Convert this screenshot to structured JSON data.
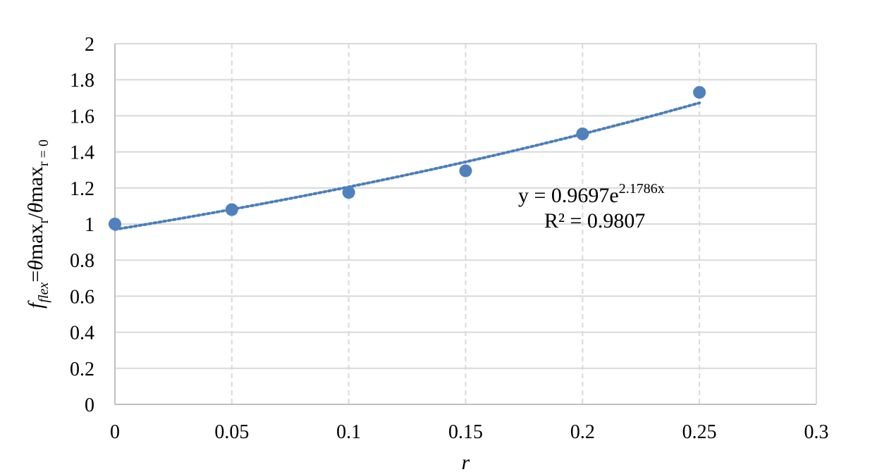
{
  "chart_data": {
    "type": "scatter",
    "title": "",
    "xlabel": "r",
    "ylabel": {
      "parts": [
        {
          "text": "f",
          "style": "italic"
        },
        {
          "text": "flex",
          "style": "italic-sub"
        },
        {
          "text": "=",
          "style": "normal"
        },
        {
          "text": "θ",
          "style": "italic"
        },
        {
          "text": "max",
          "style": "normal"
        },
        {
          "text": "r",
          "style": "sub"
        },
        {
          "text": "/",
          "style": "normal"
        },
        {
          "text": "θ",
          "style": "italic"
        },
        {
          "text": "max",
          "style": "normal"
        },
        {
          "text": "r = 0",
          "style": "sub"
        }
      ]
    },
    "xlim": [
      0,
      0.3
    ],
    "ylim": [
      0,
      2
    ],
    "x_ticks": [
      "0",
      "0.05",
      "0.1",
      "0.15",
      "0.2",
      "0.25",
      "0.3"
    ],
    "y_ticks": [
      "0",
      "0.2",
      "0.4",
      "0.6",
      "0.8",
      "1",
      "1.2",
      "1.4",
      "1.6",
      "1.8",
      "2"
    ],
    "grid": true,
    "series": [
      {
        "x": [
          0,
          0.05,
          0.1,
          0.15,
          0.2,
          0.25
        ],
        "y": [
          1.0,
          1.08,
          1.175,
          1.295,
          1.5,
          1.73
        ]
      }
    ],
    "trendline": {
      "type": "exponential",
      "a": 0.9697,
      "b": 2.1786,
      "x_range": [
        0,
        0.25
      ],
      "equation_text": "y = 0.9697e",
      "exponent_text": "2.1786x",
      "r2_text": "R² = 0.9807"
    },
    "colors": {
      "marker": "#4F81BD",
      "trendline": "#4A7EBB",
      "grid": "#D9D9D9",
      "axis": "#BFBFBF"
    }
  }
}
